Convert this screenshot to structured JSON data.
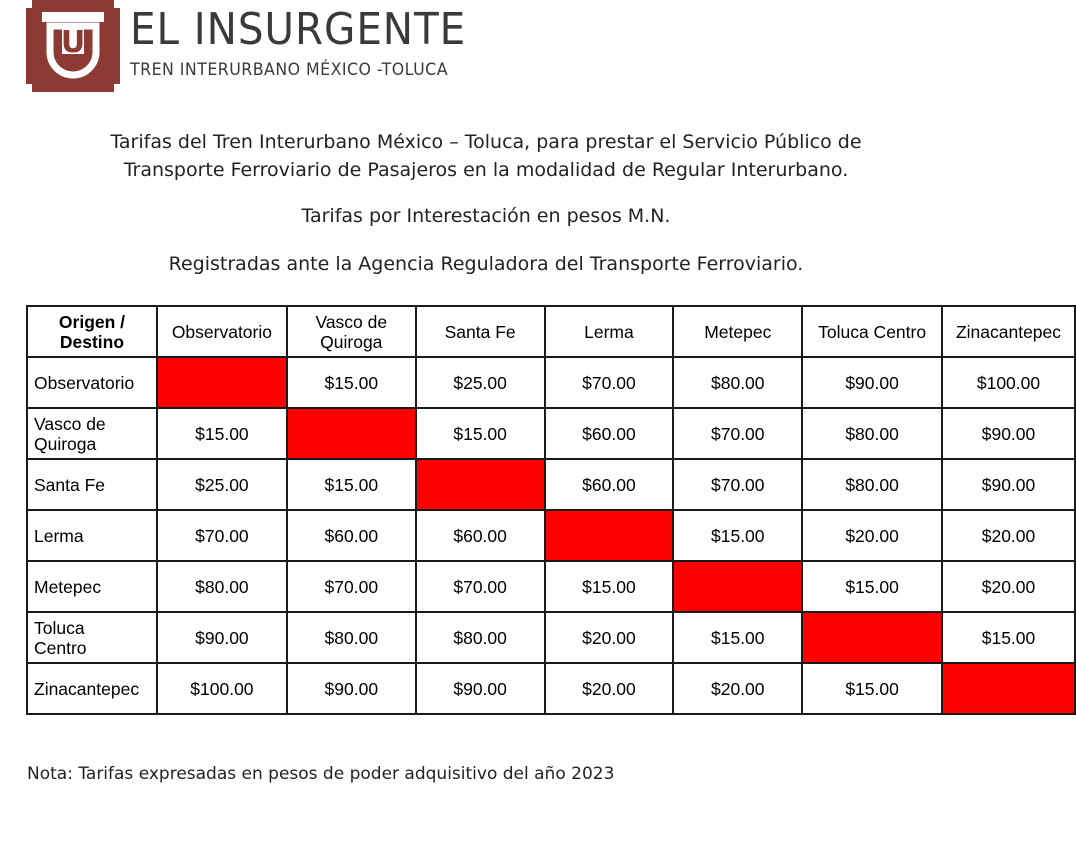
{
  "header": {
    "brand_name": "EL INSURGENTE",
    "brand_tagline": "TREN INTERURBANO MÉXICO -TOLUCA",
    "logo_letter": "U",
    "logo_color": "#8b3a34"
  },
  "intro": {
    "line1": "Tarifas del Tren Interurbano México – Toluca, para prestar el Servicio Público de",
    "line2": "Transporte Ferroviario de Pasajeros en la modalidad de Regular Interurbano.",
    "line3": "Tarifas por Interestación en pesos M.N.",
    "line4": "Registradas ante la Agencia Reguladora del Transporte Ferroviario."
  },
  "table": {
    "corner_line1": "Origen /",
    "corner_line2": "Destino",
    "columns": [
      [
        "Observatorio"
      ],
      [
        "Vasco de",
        "Quiroga"
      ],
      [
        "Santa Fe"
      ],
      [
        "Lerma"
      ],
      [
        "Metepec"
      ],
      [
        "Toluca Centro"
      ],
      [
        "Zinacantepec"
      ]
    ],
    "rows": [
      {
        "label": [
          "Observatorio"
        ],
        "values": [
          "",
          "$15.00",
          "$25.00",
          "$70.00",
          "$80.00",
          "$90.00",
          "$100.00"
        ]
      },
      {
        "label": [
          "Vasco de",
          "Quiroga"
        ],
        "values": [
          "$15.00",
          "",
          "$15.00",
          "$60.00",
          "$70.00",
          "$80.00",
          "$90.00"
        ]
      },
      {
        "label": [
          "Santa Fe"
        ],
        "values": [
          "$25.00",
          "$15.00",
          "",
          "$60.00",
          "$70.00",
          "$80.00",
          "$90.00"
        ]
      },
      {
        "label": [
          "Lerma"
        ],
        "values": [
          "$70.00",
          "$60.00",
          "$60.00",
          "",
          "$15.00",
          "$20.00",
          "$20.00"
        ]
      },
      {
        "label": [
          "Metepec"
        ],
        "values": [
          "$80.00",
          "$70.00",
          "$70.00",
          "$15.00",
          "",
          "$15.00",
          "$20.00"
        ]
      },
      {
        "label": [
          "Toluca",
          "Centro"
        ],
        "values": [
          "$90.00",
          "$80.00",
          "$80.00",
          "$20.00",
          "$15.00",
          "",
          "$15.00"
        ]
      },
      {
        "label": [
          "Zinacantepec"
        ],
        "values": [
          "$100.00",
          "$90.00",
          "$90.00",
          "$20.00",
          "$20.00",
          "$15.00",
          ""
        ]
      }
    ],
    "empty_cell_color": "#ff0000"
  },
  "note": {
    "text": "Nota: Tarifas expresadas en pesos de poder adquisitivo del año 2023"
  }
}
